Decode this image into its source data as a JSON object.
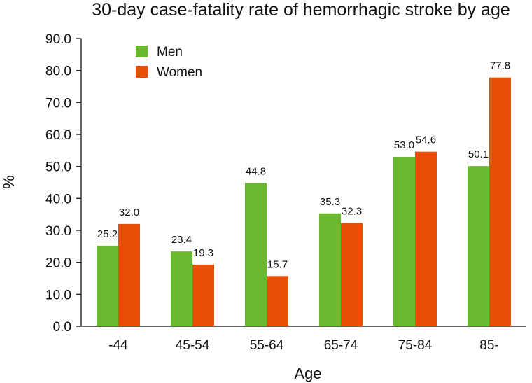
{
  "chart_data": {
    "type": "bar",
    "title": "30-day case-fatality rate of hemorrhagic stroke by age",
    "xlabel": "Age",
    "ylabel": "%",
    "ylim": [
      0,
      90
    ],
    "yticks": [
      "0.0",
      "10.0",
      "20.0",
      "30.0",
      "40.0",
      "50.0",
      "60.0",
      "70.0",
      "80.0",
      "90.0"
    ],
    "categories": [
      "-44",
      "45-54",
      "55-64",
      "65-74",
      "75-84",
      "85-"
    ],
    "series": [
      {
        "name": "Men",
        "color": "#6ab82e",
        "values": [
          25.2,
          23.4,
          44.8,
          35.3,
          53.0,
          50.1
        ]
      },
      {
        "name": "Women",
        "color": "#e8500a",
        "values": [
          32.0,
          19.3,
          15.7,
          32.3,
          54.6,
          77.8
        ]
      }
    ],
    "legend_position": "top-left",
    "grid": false
  }
}
